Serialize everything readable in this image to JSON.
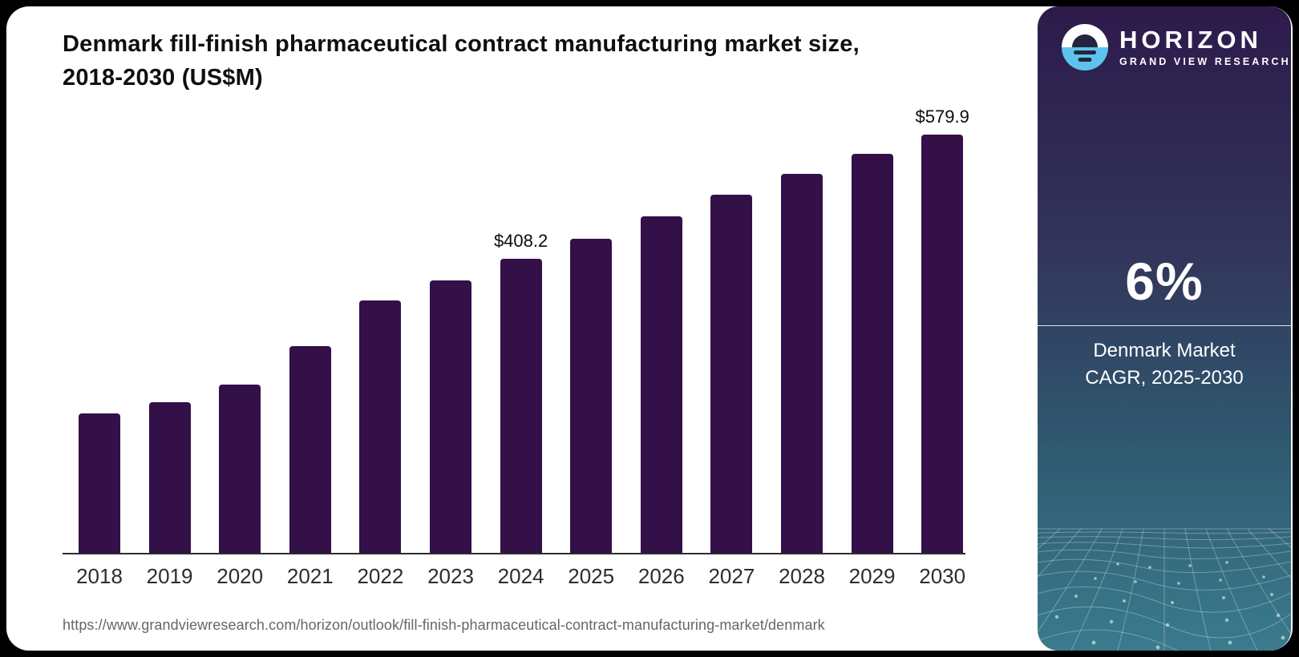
{
  "page": {
    "outer_background": "#000000",
    "card_background": "#ffffff"
  },
  "chart": {
    "source_url": "https://www.grandviewresearch.com/horizon/outlook/fill-finish-pharmaceutical-contract-manufacturing-market/denmark",
    "axis_color": "#2e2e2e",
    "label_color": "#0b0b0b",
    "tick_color": "#2d2d2d"
  },
  "chart_data": {
    "type": "bar",
    "title": "Denmark fill-finish pharmaceutical contract manufacturing market size, 2018-2030 (US$M)",
    "unit": "US$M",
    "categories": [
      "2018",
      "2019",
      "2020",
      "2021",
      "2022",
      "2023",
      "2024",
      "2025",
      "2026",
      "2027",
      "2028",
      "2029",
      "2030"
    ],
    "values": [
      192.9,
      208.5,
      233.0,
      286.6,
      350.1,
      378.0,
      408.2,
      436.0,
      467.2,
      496.2,
      525.6,
      553.1,
      579.9
    ],
    "point_labels": [
      "",
      "",
      "",
      "",
      "",
      "",
      "$408.2",
      "",
      "",
      "",
      "",
      "",
      "$579.9"
    ],
    "xlabel": "",
    "ylabel": "",
    "ylim": [
      0,
      620
    ],
    "grid": false,
    "legend_position": "none",
    "bar_color": "#331048",
    "note": "values for unlabeled years estimated from bar heights; 2024 and 2030 labeled on chart"
  },
  "sidebar": {
    "logo": {
      "icon": "horizon-sun-logo-icon",
      "brand": "HORIZON",
      "sub_brand": "GRAND VIEW RESEARCH"
    },
    "stat_value": "6%",
    "stat_caption_line1": "Denmark Market",
    "stat_caption_line2": "CAGR, 2025-2030",
    "gradient_top": "#2d1a4b",
    "gradient_bottom": "#3a7b8d",
    "mesh_line_color": "#b8d6de"
  }
}
